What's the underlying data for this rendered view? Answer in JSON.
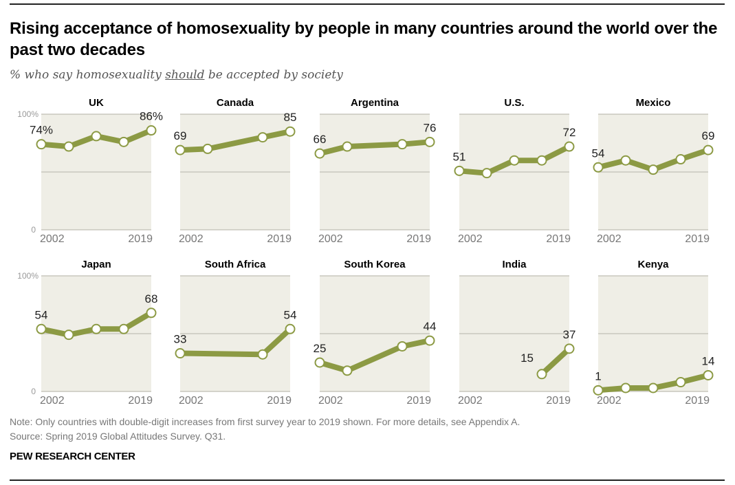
{
  "header": {
    "title": "Rising acceptance of homosexuality by people in many countries around the world over the past two decades",
    "subtitle_pre": "% who say homosexuality ",
    "subtitle_emph": "should",
    "subtitle_post": " be accepted by society"
  },
  "footer": {
    "note": "Note: Only countries with double-digit increases from first survey year to 2019 shown. For more details, see Appendix A.",
    "source": "Source: Spring 2019 Global Attitudes Survey. Q31.",
    "brand": "PEW RESEARCH CENTER"
  },
  "colors": {
    "line": "#8c9a44",
    "panel_bg": "#efeee6",
    "gridline": "#c8c7bd",
    "marker_fill": "#ffffff"
  },
  "chart_data": {
    "type": "line",
    "title": "Rising acceptance of homosexuality by people in many countries around the world over the past two decades",
    "subtitle": "% who say homosexuality should be accepted by society",
    "xlabel": "",
    "ylabel": "",
    "ylim": [
      0,
      100
    ],
    "y_ticks": [
      "0",
      "100%"
    ],
    "x_ticks": [
      "2002",
      "2019"
    ],
    "x_slots": 5,
    "grid": true,
    "panels": [
      {
        "name": "UK",
        "slots": [
          0,
          1,
          2,
          3,
          4
        ],
        "values": [
          74,
          72,
          81,
          76,
          86
        ],
        "first_label": "74%",
        "last_label": "86%"
      },
      {
        "name": "Canada",
        "slots": [
          0,
          1,
          3,
          4
        ],
        "values": [
          69,
          70,
          80,
          85
        ],
        "first_label": "69",
        "last_label": "85"
      },
      {
        "name": "Argentina",
        "slots": [
          0,
          1,
          3,
          4
        ],
        "values": [
          66,
          72,
          74,
          76
        ],
        "first_label": "66",
        "last_label": "76"
      },
      {
        "name": "U.S.",
        "slots": [
          0,
          1,
          2,
          3,
          4
        ],
        "values": [
          51,
          49,
          60,
          60,
          72
        ],
        "first_label": "51",
        "last_label": "72"
      },
      {
        "name": "Mexico",
        "slots": [
          0,
          1,
          2,
          3,
          4
        ],
        "values": [
          54,
          60,
          52,
          61,
          69
        ],
        "first_label": "54",
        "last_label": "69"
      },
      {
        "name": "Japan",
        "slots": [
          0,
          1,
          2,
          3,
          4
        ],
        "values": [
          54,
          49,
          54,
          54,
          68
        ],
        "first_label": "54",
        "last_label": "68"
      },
      {
        "name": "South Africa",
        "slots": [
          0,
          3,
          4
        ],
        "values": [
          33,
          32,
          54
        ],
        "first_label": "33",
        "last_label": "54"
      },
      {
        "name": "South Korea",
        "slots": [
          0,
          1,
          3,
          4
        ],
        "values": [
          25,
          18,
          39,
          44
        ],
        "first_label": "25",
        "last_label": "44"
      },
      {
        "name": "India",
        "slots": [
          3,
          4
        ],
        "values": [
          15,
          37
        ],
        "first_label": "15",
        "last_label": "37"
      },
      {
        "name": "Kenya",
        "slots": [
          0,
          1,
          2,
          3,
          4
        ],
        "values": [
          1,
          3,
          3,
          8,
          14
        ],
        "first_label": "1",
        "last_label": "14"
      }
    ]
  }
}
